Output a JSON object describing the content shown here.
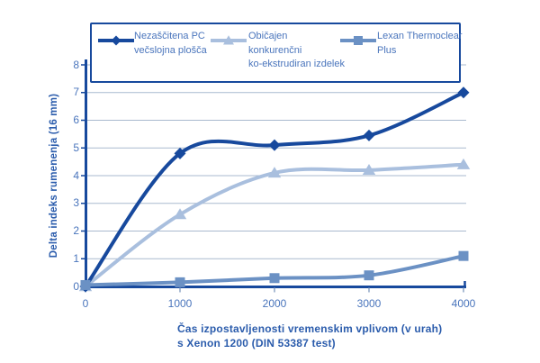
{
  "chart_data": {
    "type": "line",
    "x": [
      0,
      1000,
      2000,
      3000,
      4000
    ],
    "xticks": [
      0,
      1000,
      2000,
      3000,
      4000
    ],
    "yticks": [
      0,
      1,
      2,
      3,
      4,
      5,
      6,
      7,
      8
    ],
    "ylim": [
      0,
      8
    ],
    "xlim": [
      0,
      4000
    ],
    "grid": true,
    "legend_position": "top",
    "ylabel": "Delta indeks rumenenja (16 mm)",
    "xlabel_lines": [
      "Čas izpostavljenosti vremenskim vplivom (v urah)",
      "s Xenon 1200 (DIN 53387 test)"
    ],
    "series": [
      {
        "name": "Nezaščitena PC večslojna plošča",
        "marker": "diamond",
        "color": "#17499D",
        "values": [
          0,
          4.8,
          5.1,
          5.45,
          7.0
        ]
      },
      {
        "name": "Običajen konkurenčni ko-ekstrudiran izdelek",
        "marker": "triangle",
        "color": "#A9BFDE",
        "values": [
          0,
          2.6,
          4.1,
          4.2,
          4.4
        ]
      },
      {
        "name": "Lexan Thermoclear Plus",
        "marker": "square",
        "color": "#6B91C4",
        "values": [
          0.05,
          0.15,
          0.3,
          0.4,
          1.1
        ]
      }
    ],
    "legend": [
      {
        "lines": [
          "Nezaščitena PC",
          "večslojna plošča"
        ]
      },
      {
        "lines": [
          "Običajen",
          "konkurenčni",
          "ko-ekstrudiran izdelek"
        ]
      },
      {
        "lines": [
          "Lexan Thermoclear",
          "Plus"
        ]
      }
    ],
    "colors": {
      "axis": "#17499D",
      "grid": "#A9BACF",
      "minor_tick": "#8FA6C6",
      "tick_text": "#4A75BC",
      "label_text": "#2B5CAC",
      "legend_border": "#17499D",
      "background": "#FFFFFF"
    }
  }
}
